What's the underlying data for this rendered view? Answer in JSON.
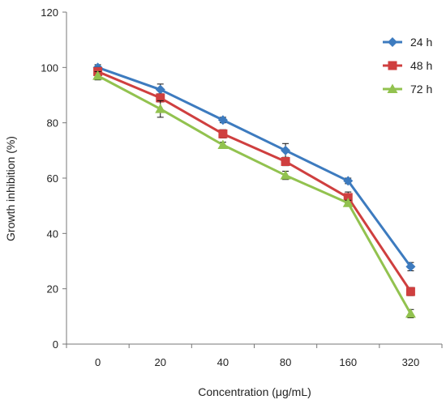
{
  "chart_data": {
    "type": "line",
    "xlabel": "Concentration (μg/mL)",
    "ylabel": "Growth inhibition (%)",
    "categories": [
      "0",
      "20",
      "40",
      "80",
      "160",
      "320"
    ],
    "ylim": [
      0,
      120
    ],
    "yticks": [
      0,
      20,
      40,
      60,
      80,
      100,
      120
    ],
    "grid": false,
    "legend_position": "top-right",
    "series": [
      {
        "name": "24 h",
        "color": "#3d7bbf",
        "marker": "diamond",
        "values": [
          100,
          92,
          81,
          70,
          59,
          28
        ],
        "errors": [
          1,
          2,
          1,
          2.5,
          1,
          1.5
        ]
      },
      {
        "name": "48 h",
        "color": "#cf3f3f",
        "marker": "square",
        "values": [
          98.5,
          89,
          76,
          66,
          53,
          19
        ],
        "errors": [
          1.5,
          1.5,
          1.5,
          1.5,
          2,
          1.5
        ]
      },
      {
        "name": "72 h",
        "color": "#92c24f",
        "marker": "triangle",
        "values": [
          97,
          85,
          72,
          61,
          51,
          11
        ],
        "errors": [
          1.5,
          3,
          1,
          1.5,
          1,
          1.5
        ]
      }
    ]
  }
}
